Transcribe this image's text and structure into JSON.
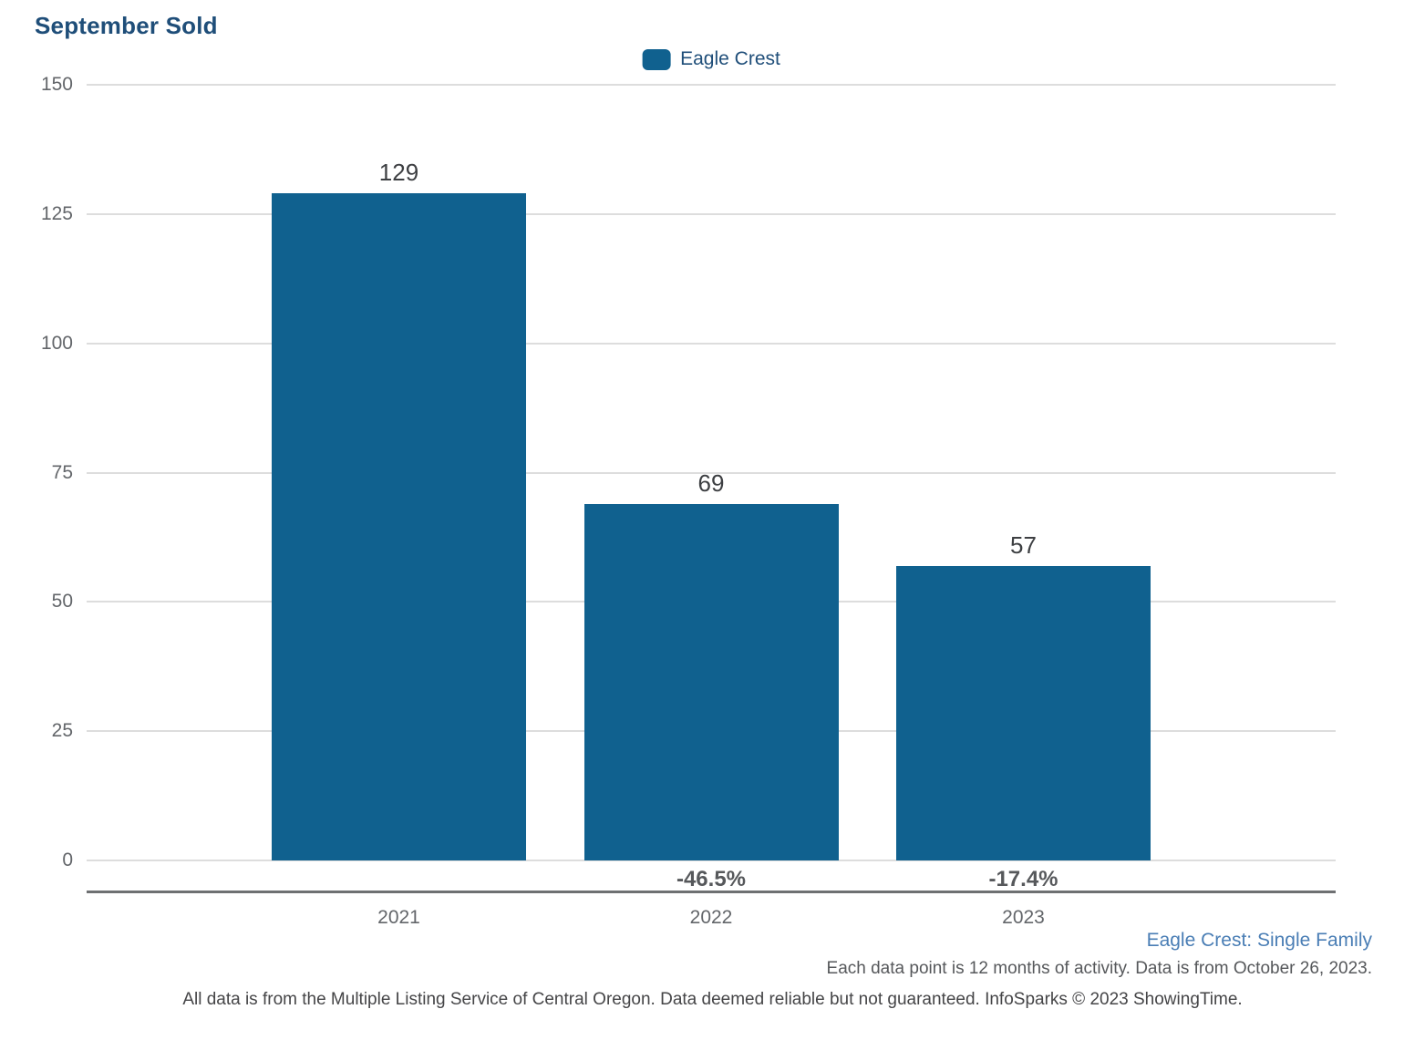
{
  "title": "September Sold",
  "legend": {
    "label": "Eagle Crest",
    "swatch_color": "#10618F"
  },
  "chart_data": {
    "type": "bar",
    "title": "September Sold",
    "categories": [
      "2021",
      "2022",
      "2023"
    ],
    "series": [
      {
        "name": "Eagle Crest",
        "values": [
          129,
          69,
          57
        ]
      }
    ],
    "bar_value_labels": [
      "129",
      "69",
      "57"
    ],
    "pct_change_labels": [
      null,
      "-46.5%",
      "-17.4%"
    ],
    "ylim": [
      0,
      150
    ],
    "yticks": [
      150,
      125,
      100,
      75,
      50,
      25,
      0
    ],
    "bar_color": "#10618F",
    "grid": "horizontal",
    "legend_position": "top-center"
  },
  "footer": {
    "subtitle": "Eagle Crest: Single Family",
    "note": "Each data point is 12 months of activity. Data is from October 26, 2023.",
    "disclaimer": "All data is from the Multiple Listing Service of Central Oregon. Data deemed reliable but not guaranteed. InfoSparks © 2023 ShowingTime."
  },
  "colors": {
    "title_text": "#1F4E79",
    "legend_text": "#1F4E79",
    "axis_label_text": "#63666A",
    "value_label_text": "#3d3f42",
    "pct_label_text": "#56585b",
    "gridline": "#dddddd",
    "axis_line": "#6e7072",
    "subtitle_text": "#4A7EB5"
  }
}
